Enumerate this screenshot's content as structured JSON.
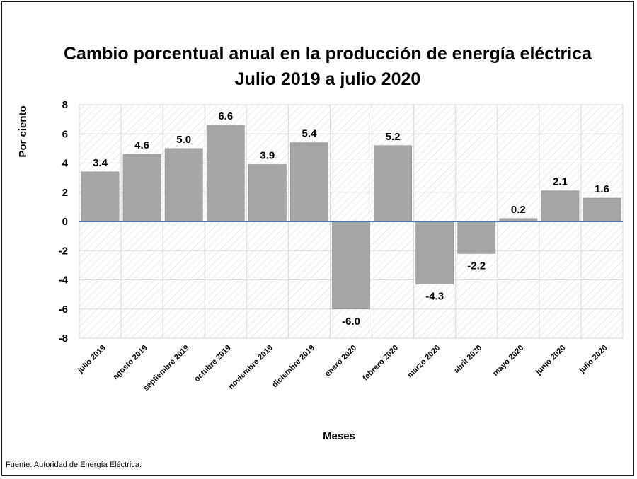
{
  "chart_data": {
    "type": "bar",
    "title": [
      "Cambio porcentual anual en la producción de energía eléctrica",
      "Julio 2019 a julio 2020"
    ],
    "xlabel": "Meses",
    "ylabel": "Por ciento",
    "ylim": [
      -8,
      8
    ],
    "yticks": [
      8,
      6,
      4,
      2,
      0,
      -2,
      -4,
      -6,
      -8
    ],
    "categories": [
      "julio 2019",
      "agosto 2019",
      "septiembre 2019",
      "octubre 2019",
      "noviembre 2019",
      "diciembre 2019",
      "enero 2020",
      "febrero 2020",
      "marzo 2020",
      "abril 2020",
      "mayo 2020",
      "junio 2020",
      "julio 2020"
    ],
    "values": [
      3.4,
      4.6,
      5.0,
      6.6,
      3.9,
      5.4,
      -6.0,
      5.2,
      -4.3,
      -2.2,
      0.2,
      2.1,
      1.6
    ],
    "value_labels": [
      "3.4",
      "4.6",
      "5.0",
      "6.6",
      "3.9",
      "5.4",
      "-6.0",
      "5.2",
      "-4.3",
      "-2.2",
      "0.2",
      "2.1",
      "1.6"
    ],
    "grid": true,
    "bar_color": "#a6a6a6",
    "zero_line_color": "#4472c4"
  },
  "source": "Fuente: Autoridad de Energía Eléctrica."
}
